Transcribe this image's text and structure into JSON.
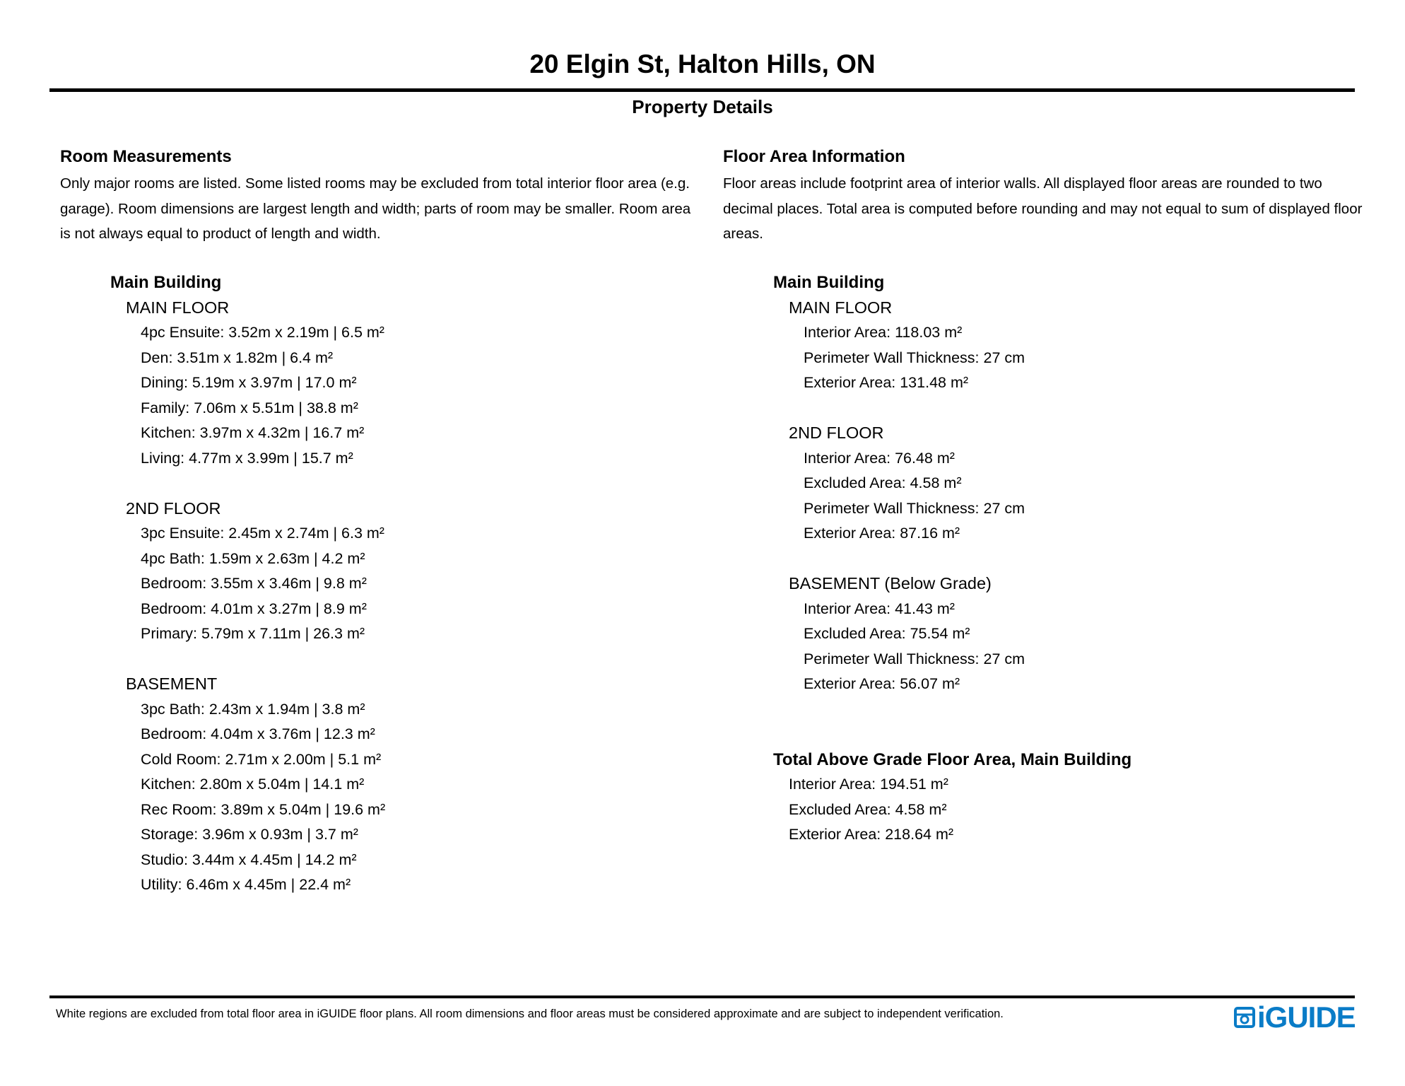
{
  "header": {
    "title": "20 Elgin St, Halton Hills, ON",
    "subtitle": "Property Details"
  },
  "room_measurements": {
    "heading": "Room Measurements",
    "description": "Only major rooms are listed. Some listed rooms may be excluded from total interior floor area (e.g. garage). Room dimensions are largest length and width; parts of room may be smaller. Room area is not always equal to product of length and width.",
    "building": "Main Building",
    "floors": [
      {
        "name": "MAIN FLOOR",
        "rooms": [
          "4pc Ensuite: 3.52m x 2.19m | 6.5 m²",
          "Den: 3.51m x 1.82m | 6.4 m²",
          "Dining: 5.19m x 3.97m | 17.0 m²",
          "Family: 7.06m x 5.51m | 38.8 m²",
          "Kitchen: 3.97m x 4.32m | 16.7 m²",
          "Living: 4.77m x 3.99m | 15.7 m²"
        ]
      },
      {
        "name": "2ND FLOOR",
        "rooms": [
          "3pc Ensuite: 2.45m x 2.74m | 6.3 m²",
          "4pc Bath: 1.59m x 2.63m | 4.2 m²",
          "Bedroom: 3.55m x 3.46m | 9.8 m²",
          "Bedroom: 4.01m x 3.27m | 8.9 m²",
          "Primary: 5.79m x 7.11m | 26.3 m²"
        ]
      },
      {
        "name": "BASEMENT",
        "rooms": [
          "3pc Bath: 2.43m x 1.94m | 3.8 m²",
          "Bedroom: 4.04m x 3.76m | 12.3 m²",
          "Cold Room: 2.71m x 2.00m | 5.1 m²",
          "Kitchen: 2.80m x 5.04m | 14.1 m²",
          "Rec Room: 3.89m x 5.04m | 19.6 m²",
          "Storage: 3.96m x 0.93m | 3.7 m²",
          "Studio: 3.44m x 4.45m | 14.2 m²",
          "Utility: 6.46m x 4.45m | 22.4 m²"
        ]
      }
    ]
  },
  "floor_area": {
    "heading": "Floor Area Information",
    "description": "Floor areas include footprint area of interior walls. All displayed floor areas are rounded to two decimal places. Total area is computed before rounding and may not equal to sum of displayed floor areas.",
    "building": "Main Building",
    "floors": [
      {
        "name": "MAIN FLOOR",
        "items": [
          "Interior Area: 118.03 m²",
          "Perimeter Wall Thickness: 27 cm",
          "Exterior Area: 131.48 m²"
        ]
      },
      {
        "name": "2ND FLOOR",
        "items": [
          "Interior Area: 76.48 m²",
          "Excluded Area: 4.58 m²",
          "Perimeter Wall Thickness: 27 cm",
          "Exterior Area: 87.16 m²"
        ]
      },
      {
        "name": "BASEMENT (Below Grade)",
        "items": [
          "Interior Area: 41.43 m²",
          "Excluded Area: 75.54 m²",
          "Perimeter Wall Thickness: 27 cm",
          "Exterior Area: 56.07 m²"
        ]
      }
    ],
    "total": {
      "heading": "Total Above Grade Floor Area, Main Building",
      "items": [
        "Interior Area: 194.51 m²",
        "Excluded Area: 4.58 m²",
        "Exterior Area: 218.64 m²"
      ]
    }
  },
  "footer": {
    "note": "White regions are excluded from total floor area in iGUIDE floor plans. All room dimensions and floor areas must be considered approximate and are subject to independent verification.",
    "logo_text": "iGUIDE",
    "brand_color": "#0a7cc7"
  }
}
